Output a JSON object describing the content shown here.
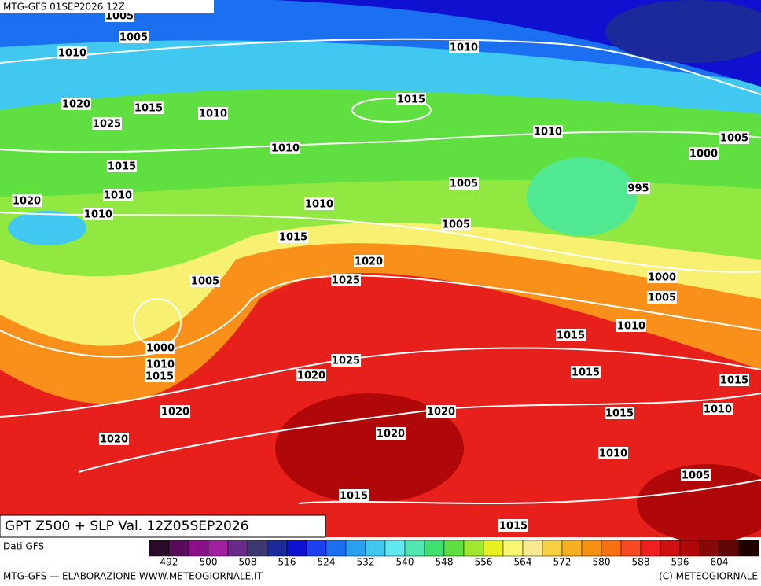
{
  "header": {
    "title": "MTG-GFS 01SEP2026 12Z"
  },
  "map": {
    "caption": "GPT Z500 + SLP Val. 12Z05SEP2026",
    "isobar_labels": [
      "1005",
      "1005",
      "1010",
      "1010",
      "1015",
      "1020",
      "1015",
      "1010",
      "1025",
      "1010",
      "1005",
      "1010",
      "1000",
      "1015",
      "1005",
      "995",
      "1010",
      "1020",
      "1010",
      "1010",
      "1005",
      "1015",
      "1020",
      "1000",
      "1025",
      "1005",
      "1005",
      "1010",
      "1015",
      "1000",
      "1025",
      "1010",
      "1015",
      "1015",
      "1020",
      "1015",
      "1010",
      "1020",
      "1020",
      "1015",
      "1020",
      "1020",
      "1010",
      "1005",
      "1015",
      "1015"
    ]
  },
  "legend": {
    "source": "Dati GFS",
    "colors": [
      "#2a0a2a",
      "#5a0a5a",
      "#8a108a",
      "#a020a0",
      "#6a2a8a",
      "#3a3a70",
      "#1a2a9a",
      "#1010d0",
      "#1a40f0",
      "#1a70f0",
      "#2aa0f0",
      "#40c8f0",
      "#60e8f0",
      "#50e8b0",
      "#40e070",
      "#60e040",
      "#a0e830",
      "#e8f020",
      "#f8f870",
      "#f8e890",
      "#f8d040",
      "#f8b020",
      "#f89010",
      "#f87010",
      "#f84a20",
      "#f02020",
      "#d01010",
      "#b00808",
      "#880808",
      "#600808",
      "#200000"
    ],
    "ticks": [
      492,
      500,
      508,
      516,
      524,
      532,
      540,
      548,
      556,
      564,
      572,
      580,
      588,
      596,
      604
    ]
  },
  "footer": {
    "left": "MTG-GFS — ELABORAZIONE WWW.METEOGIORNALE.IT",
    "right": "(C) METEOGIORNALE"
  }
}
